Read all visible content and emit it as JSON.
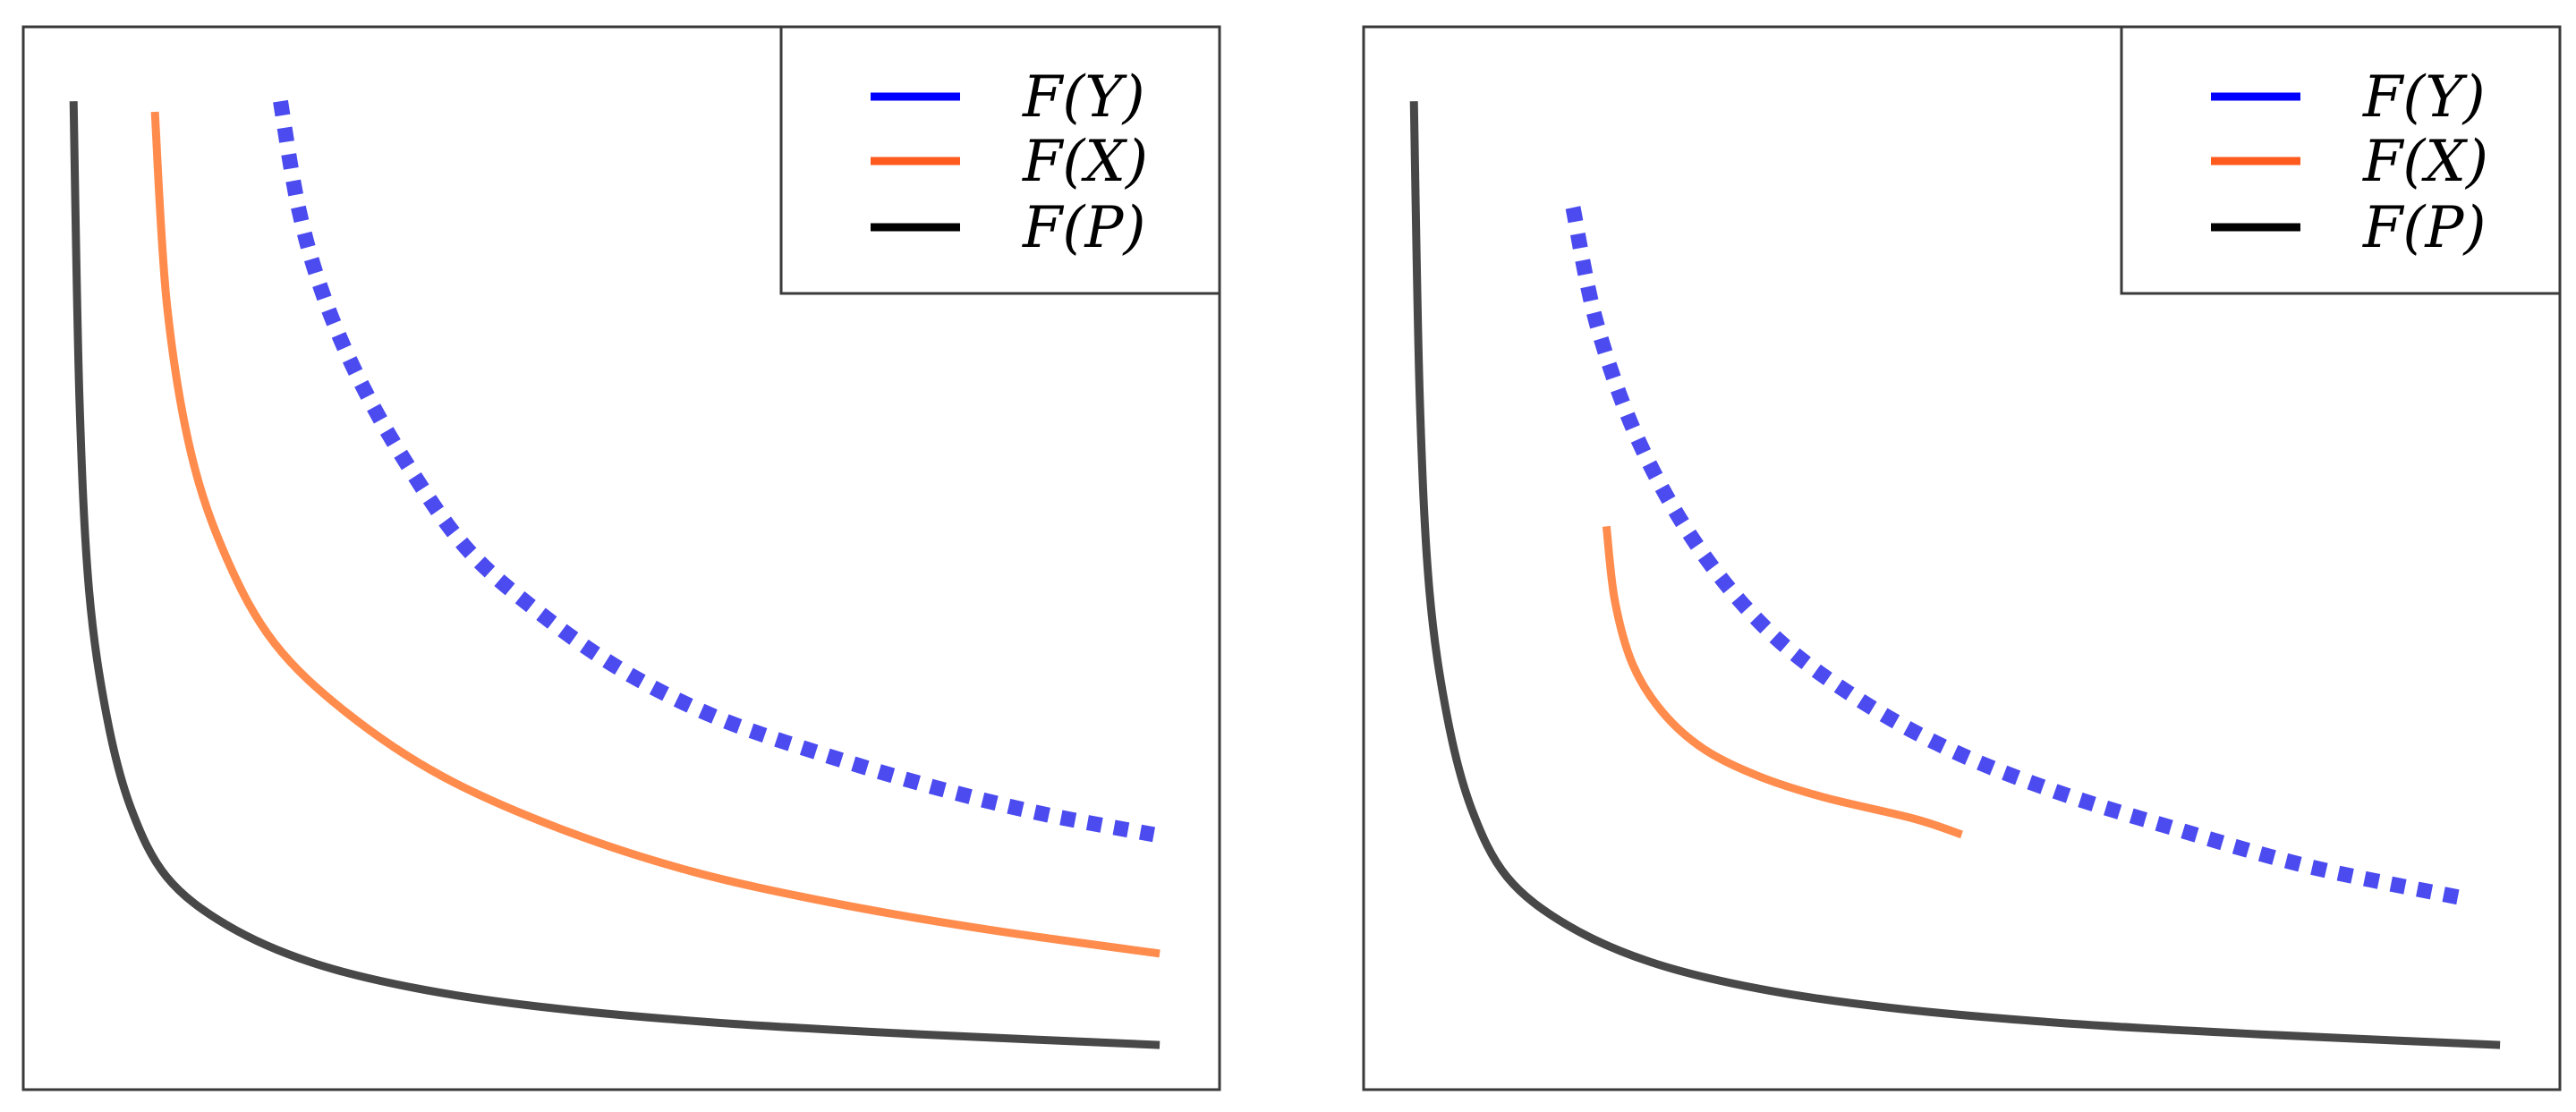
{
  "chart_data": [
    {
      "type": "line",
      "title": "",
      "xlabel": "",
      "ylabel": "",
      "xlim": [
        0,
        10
      ],
      "ylim": [
        0,
        10
      ],
      "grid": false,
      "ticks": false,
      "legend_position": "top-right",
      "series": [
        {
          "name": "F(Y)",
          "color": "#4b4bf0",
          "legend_color": "#0000ff",
          "style": "dotted",
          "x": [
            2.15,
            2.3,
            2.5,
            2.8,
            3.2,
            3.7,
            4.3,
            5.0,
            5.8,
            6.7,
            7.6,
            8.5,
            9.45
          ],
          "y": [
            9.3,
            8.3,
            7.5,
            6.7,
            5.9,
            5.1,
            4.5,
            3.95,
            3.5,
            3.15,
            2.85,
            2.6,
            2.4
          ]
        },
        {
          "name": "F(X)",
          "color": "#ff8c4d",
          "legend_color": "#ff5a1e",
          "style": "solid",
          "x": [
            1.1,
            1.2,
            1.4,
            1.7,
            2.1,
            2.7,
            3.5,
            4.5,
            5.6,
            6.8,
            8.1,
            9.5
          ],
          "y": [
            9.2,
            7.4,
            6.0,
            5.0,
            4.2,
            3.55,
            2.95,
            2.45,
            2.05,
            1.75,
            1.5,
            1.28
          ]
        },
        {
          "name": "F(P)",
          "color": "#484848",
          "legend_color": "#000000",
          "style": "solid",
          "x": [
            0.42,
            0.47,
            0.55,
            0.7,
            0.9,
            1.2,
            1.7,
            2.4,
            3.3,
            4.4,
            5.8,
            7.5,
            9.5
          ],
          "y": [
            9.3,
            6.5,
            4.7,
            3.5,
            2.65,
            2.0,
            1.55,
            1.2,
            0.95,
            0.77,
            0.63,
            0.52,
            0.42
          ]
        }
      ]
    },
    {
      "type": "line",
      "title": "",
      "xlabel": "",
      "ylabel": "",
      "xlim": [
        0,
        10
      ],
      "ylim": [
        0,
        10
      ],
      "grid": false,
      "ticks": false,
      "legend_position": "top-right",
      "series": [
        {
          "name": "F(Y)",
          "color": "#4b4bf0",
          "legend_color": "#0000ff",
          "style": "dotted",
          "x": [
            1.75,
            1.95,
            2.3,
            2.8,
            3.4,
            4.1,
            4.9,
            5.8,
            6.8,
            7.9,
            9.2
          ],
          "y": [
            8.3,
            7.2,
            6.1,
            5.1,
            4.3,
            3.7,
            3.2,
            2.8,
            2.45,
            2.1,
            1.8
          ]
        },
        {
          "name": "F(X)",
          "color": "#ff8c4d",
          "legend_color": "#ff5a1e",
          "style": "solid",
          "x": [
            2.03,
            2.1,
            2.25,
            2.5,
            2.85,
            3.3,
            3.85,
            4.6,
            5.0
          ],
          "y": [
            5.3,
            4.6,
            4.0,
            3.55,
            3.2,
            2.95,
            2.75,
            2.55,
            2.4
          ]
        },
        {
          "name": "F(P)",
          "color": "#484848",
          "legend_color": "#000000",
          "style": "solid",
          "x": [
            0.42,
            0.47,
            0.55,
            0.7,
            0.9,
            1.2,
            1.7,
            2.4,
            3.3,
            4.4,
            5.8,
            7.5,
            9.5
          ],
          "y": [
            9.3,
            6.5,
            4.7,
            3.5,
            2.65,
            2.0,
            1.55,
            1.2,
            0.95,
            0.77,
            0.63,
            0.52,
            0.42
          ]
        }
      ]
    }
  ]
}
